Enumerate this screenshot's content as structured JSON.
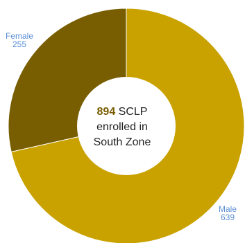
{
  "chart_data": {
    "type": "pie",
    "donut": true,
    "slices": [
      {
        "name": "Male",
        "value": 639,
        "color": "#c9a200"
      },
      {
        "name": "Female",
        "value": 255,
        "color": "#785e00"
      }
    ],
    "center": {
      "total": "894",
      "line1_rest": " SCLP",
      "line2": "enrolled in",
      "line3": "South Zone"
    },
    "legend": "none"
  }
}
